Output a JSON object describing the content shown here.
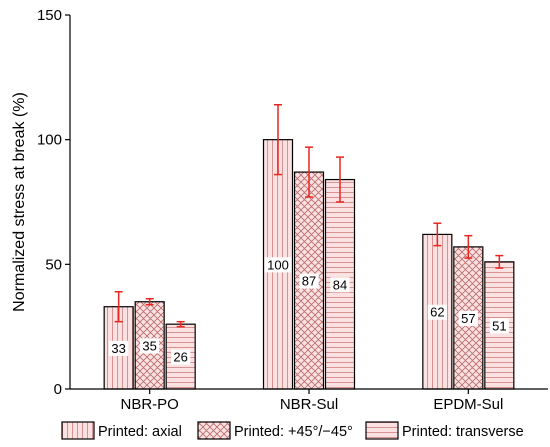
{
  "chart_data": {
    "type": "bar",
    "categories": [
      "NBR-PO",
      "NBR-Sul",
      "EPDM-Sul"
    ],
    "series": [
      {
        "name": "Printed: axial",
        "values": [
          33,
          100,
          62
        ],
        "errors": [
          6,
          14,
          4.5
        ],
        "pattern": "vertical-lines"
      },
      {
        "name": "Printed: +45°/−45°",
        "values": [
          35,
          87,
          57
        ],
        "errors": [
          1.2,
          10,
          4.5
        ],
        "pattern": "crosshatch"
      },
      {
        "name": "Printed: transverse",
        "values": [
          26,
          84,
          51
        ],
        "errors": [
          1,
          9,
          2.5
        ],
        "pattern": "horizontal-lines"
      }
    ],
    "title": "",
    "xlabel": "",
    "ylabel": "Normalized stress at break (%)",
    "ylim": [
      0,
      150
    ],
    "yticks": [
      0,
      50,
      100,
      150
    ],
    "grid": false,
    "legend_position": "bottom",
    "data_labels": true,
    "colors": {
      "bar_fill": "#fbe1e1",
      "hatch": "#d48a8a",
      "error_bar": "#e8261f",
      "outline": "#000000"
    }
  }
}
